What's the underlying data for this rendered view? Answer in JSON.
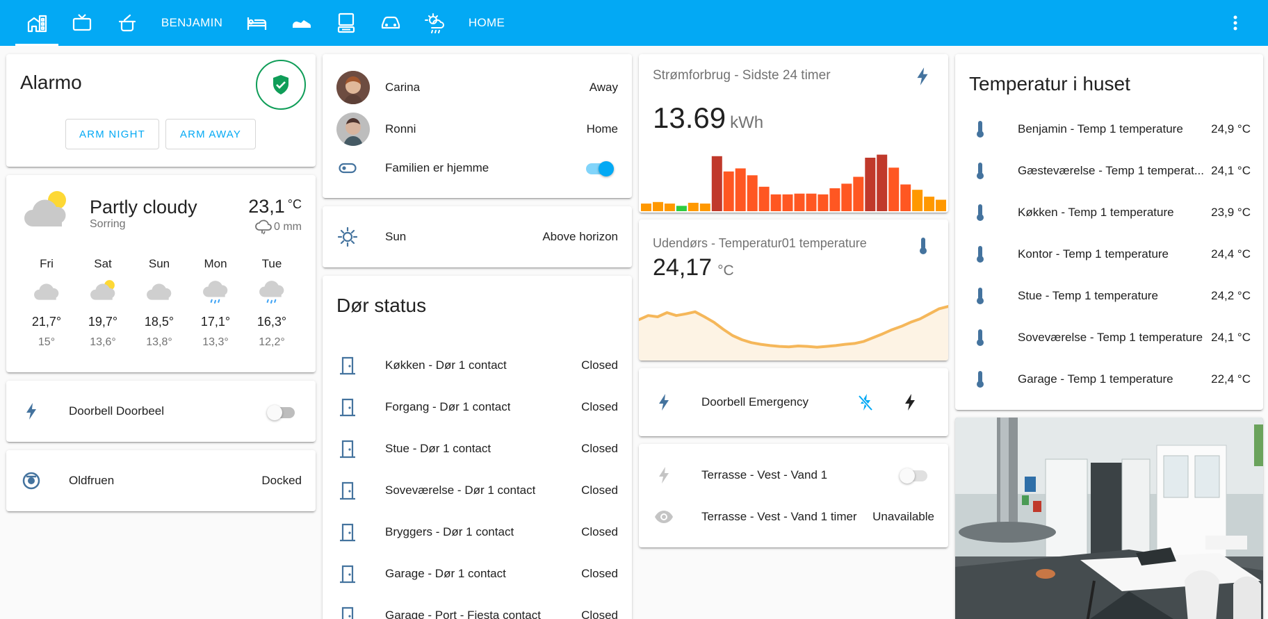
{
  "colors": {
    "accent": "#03a9f4",
    "icon": "#44739e",
    "alarm_green": "#0f9d58",
    "bar_high": "#c0392b",
    "bar_mid": "#ff5722",
    "bar_low": "#ff9800",
    "bar_warm": "#f5a623",
    "bar_lowest": "#2ecc40",
    "temp_line": "#f5b75a"
  },
  "topbar": {
    "tabs": [
      {
        "icon": "home-city-icon"
      },
      {
        "icon": "tv-icon"
      },
      {
        "icon": "pot-icon"
      },
      {
        "label": "BENJAMIN"
      },
      {
        "icon": "bed-icon"
      },
      {
        "icon": "shoe-icon"
      },
      {
        "icon": "desktop-icon"
      },
      {
        "icon": "car-icon"
      },
      {
        "icon": "weather-icon"
      },
      {
        "label": "HOME"
      }
    ],
    "menu_icon": "dots-vertical-icon"
  },
  "alarmo": {
    "title": "Alarmo",
    "arm_night": "ARM NIGHT",
    "arm_away": "ARM AWAY",
    "status_icon": "shield-check-icon"
  },
  "weather": {
    "condition": "Partly cloudy",
    "location": "Sorring",
    "temperature": "23,1",
    "unit": "°C",
    "precipitation": "0 mm",
    "forecast": [
      {
        "day": "Fri",
        "high": "21,7°",
        "low": "15°",
        "icon": "cloudy"
      },
      {
        "day": "Sat",
        "high": "19,7°",
        "low": "13,6°",
        "icon": "partly-cloudy"
      },
      {
        "day": "Sun",
        "high": "18,5°",
        "low": "13,8°",
        "icon": "cloudy"
      },
      {
        "day": "Mon",
        "high": "17,1°",
        "low": "13,3°",
        "icon": "rainy"
      },
      {
        "day": "Tue",
        "high": "16,3°",
        "low": "12,2°",
        "icon": "rainy"
      }
    ]
  },
  "doorbell": {
    "label": "Doorbell Doorbeel",
    "on": false
  },
  "vacuum": {
    "label": "Oldfruen",
    "state": "Docked"
  },
  "people": [
    {
      "name": "Carina",
      "state": "Away"
    },
    {
      "name": "Ronni",
      "state": "Home"
    }
  ],
  "family": {
    "label": "Familien er hjemme",
    "on": true
  },
  "sun": {
    "label": "Sun",
    "state": "Above horizon"
  },
  "doors": {
    "title": "Dør status",
    "items": [
      {
        "label": "Køkken - Dør 1 contact",
        "state": "Closed"
      },
      {
        "label": "Forgang - Dør 1 contact",
        "state": "Closed"
      },
      {
        "label": "Stue - Dør 1 contact",
        "state": "Closed"
      },
      {
        "label": "Soveværelse - Dør 1 contact",
        "state": "Closed"
      },
      {
        "label": "Bryggers - Dør 1 contact",
        "state": "Closed"
      },
      {
        "label": "Garage - Dør 1 contact",
        "state": "Closed"
      },
      {
        "label": "Garage - Port - Fiesta contact",
        "state": "Closed"
      }
    ]
  },
  "power": {
    "title": "Strømforbrug - Sidste 24 timer",
    "value": "13.69",
    "unit": "kWh",
    "bar_levels": [
      0.1,
      0.12,
      0.1,
      0.07,
      0.11,
      0.1,
      0.72,
      0.52,
      0.56,
      0.47,
      0.32,
      0.22,
      0.22,
      0.23,
      0.23,
      0.22,
      0.3,
      0.36,
      0.45,
      0.7,
      0.74,
      0.57,
      0.35,
      0.28,
      0.19,
      0.15
    ]
  },
  "outdoor": {
    "title": "Udendørs - Temperatur01 temperature",
    "value": "24,17",
    "unit": "°C",
    "line_levels": [
      0.68,
      0.78,
      0.75,
      0.85,
      0.78,
      0.82,
      0.87,
      0.75,
      0.62,
      0.45,
      0.3,
      0.2,
      0.13,
      0.09,
      0.06,
      0.04,
      0.03,
      0.05,
      0.04,
      0.02,
      0.04,
      0.06,
      0.09,
      0.11,
      0.16,
      0.25,
      0.34,
      0.44,
      0.52,
      0.62,
      0.7,
      0.82,
      0.94,
      1.0
    ]
  },
  "doorbell_emergency": {
    "label": "Doorbell Emergency"
  },
  "terrace": {
    "valve_label": "Terrasse - Vest - Vand 1",
    "valve_on": false,
    "timer_label": "Terrasse - Vest - Vand 1 timer",
    "timer_state": "Unavailable"
  },
  "temperatures": {
    "title": "Temperatur i huset",
    "items": [
      {
        "label": "Benjamin - Temp 1 temperature",
        "value": "24,9 °C"
      },
      {
        "label": "Gæsteværelse - Temp 1 temperat...",
        "value": "24,1 °C"
      },
      {
        "label": "Køkken - Temp 1 temperature",
        "value": "23,9 °C"
      },
      {
        "label": "Kontor - Temp 1 temperature",
        "value": "24,4 °C"
      },
      {
        "label": "Stue - Temp 1 temperature",
        "value": "24,2 °C"
      },
      {
        "label": "Soveværelse - Temp 1 temperature",
        "value": "24,1 °C"
      },
      {
        "label": "Garage - Temp 1 temperature",
        "value": "22,4 °C"
      }
    ]
  },
  "camera": {
    "name": "kitchen-camera"
  }
}
